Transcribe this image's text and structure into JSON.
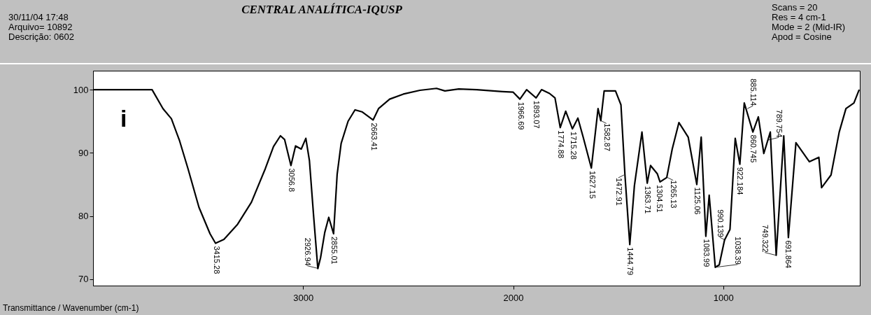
{
  "chart_data": {
    "type": "line",
    "title": "CENTRAL ANALÍTICA-IQUSP",
    "xlabel": "Transmittance / Wavenumber (cm-1)",
    "xlim": [
      4000,
      350
    ],
    "ylim": [
      69,
      103
    ],
    "xticks": [
      3000,
      2000,
      1000
    ],
    "yticks": [
      70,
      80,
      90,
      100
    ],
    "grid": false,
    "marker": "none",
    "line_style": "solid",
    "annotations": [
      "30/11/04 17:48",
      "Arquivo= 10892",
      "Descrição: 0602",
      "Scans = 20",
      "Res = 4 cm-1",
      "Mode = 2 (Mid-IR)",
      "Apod = Cosine",
      "i",
      {
        "text": "3415.28",
        "x": 3415.28,
        "y": 75.7
      },
      {
        "text": "3056.8",
        "x": 3056.8,
        "y": 88.0
      },
      {
        "text": "2926.94",
        "x": 2926.94,
        "y": 71.7
      },
      {
        "text": "2855.01",
        "x": 2855.01,
        "y": 77.2
      },
      {
        "text": "2663.41",
        "x": 2663.41,
        "y": 95.2
      },
      {
        "text": "1966.69",
        "x": 1966.69,
        "y": 98.5
      },
      {
        "text": "1893.07",
        "x": 1893.07,
        "y": 98.7
      },
      {
        "text": "1774.88",
        "x": 1774.88,
        "y": 94.0
      },
      {
        "text": "1715.28",
        "x": 1715.28,
        "y": 93.8
      },
      {
        "text": "1627.15",
        "x": 1627.15,
        "y": 87.6
      },
      {
        "text": "1582.87",
        "x": 1582.87,
        "y": 95.1
      },
      {
        "text": "1472.91",
        "x": 1472.91,
        "y": 86.5
      },
      {
        "text": "1444.79",
        "x": 1444.79,
        "y": 75.5
      },
      {
        "text": "1363.71",
        "x": 1363.71,
        "y": 85.2
      },
      {
        "text": "1304.51",
        "x": 1304.51,
        "y": 85.4
      },
      {
        "text": "1265.13",
        "x": 1265.13,
        "y": 86.1
      },
      {
        "text": "1125.06",
        "x": 1125.06,
        "y": 85.0
      },
      {
        "text": "1083.99",
        "x": 1083.99,
        "y": 76.8
      },
      {
        "text": "1038.39",
        "x": 1038.39,
        "y": 71.9
      },
      {
        "text": "990.139",
        "x": 990.139,
        "y": 76.2
      },
      {
        "text": "922.184",
        "x": 922.184,
        "y": 88.2
      },
      {
        "text": "885.114",
        "x": 885.114,
        "y": 97.0
      },
      {
        "text": "860.745",
        "x": 860.745,
        "y": 93.3
      },
      {
        "text": "789.754",
        "x": 789.754,
        "y": 92.0
      },
      {
        "text": "749.322",
        "x": 749.322,
        "y": 73.8
      },
      {
        "text": "691.864",
        "x": 691.864,
        "y": 76.6
      }
    ],
    "series": [
      {
        "color": "#000000",
        "x": [
          4000,
          3864,
          3772,
          3719,
          3667,
          3627,
          3588,
          3548,
          3496,
          3443,
          3417,
          3377,
          3312,
          3246,
          3180,
          3141,
          3108,
          3088,
          3058,
          3036,
          3009,
          2987,
          2970,
          2950,
          2930,
          2917,
          2897,
          2878,
          2855,
          2838,
          2819,
          2786,
          2753,
          2720,
          2667,
          2641,
          2588,
          2523,
          2444,
          2365,
          2325,
          2259,
          2174,
          2051,
          2000,
          1968,
          1936,
          1891,
          1865,
          1827,
          1801,
          1776,
          1750,
          1718,
          1692,
          1667,
          1628,
          1596,
          1583,
          1567,
          1513,
          1487,
          1468,
          1445,
          1423,
          1387,
          1362,
          1346,
          1314,
          1301,
          1269,
          1243,
          1211,
          1167,
          1126,
          1105,
          1083,
          1067,
          1038,
          1019,
          994,
          968,
          943,
          921,
          900,
          859,
          833,
          807,
          776,
          748,
          712,
          690,
          654,
          590,
          545,
          532,
          487,
          448,
          416,
          378,
          353
        ],
        "values": [
          100,
          100,
          100,
          100,
          97.0,
          95.4,
          91.9,
          87.5,
          81.4,
          77.2,
          75.7,
          76.3,
          78.7,
          82.2,
          87.5,
          91.0,
          92.7,
          92.1,
          88.0,
          91.1,
          90.6,
          92.3,
          88.8,
          80.0,
          71.7,
          73.4,
          77.4,
          79.8,
          77.2,
          86.6,
          91.5,
          95.0,
          96.8,
          96.5,
          95.2,
          97.0,
          98.5,
          99.3,
          99.9,
          100.2,
          99.8,
          100.1,
          100,
          99.7,
          99.6,
          98.5,
          100,
          98.7,
          100,
          99.4,
          98.7,
          94.0,
          96.6,
          93.8,
          95.5,
          92.5,
          87.6,
          97.0,
          95.1,
          99.8,
          99.8,
          97.6,
          86.5,
          75.5,
          84.8,
          93.3,
          85.2,
          88.0,
          86.7,
          85.4,
          86.1,
          90.6,
          94.8,
          92.5,
          85.0,
          92.5,
          76.8,
          83.3,
          71.9,
          72.3,
          76.2,
          77.9,
          92.3,
          88.2,
          97.9,
          93.3,
          95.7,
          89.9,
          93.3,
          73.8,
          92.7,
          76.6,
          91.6,
          88.6,
          89.3,
          84.5,
          86.5,
          93.3,
          97.0,
          97.9,
          100
        ]
      }
    ]
  }
}
